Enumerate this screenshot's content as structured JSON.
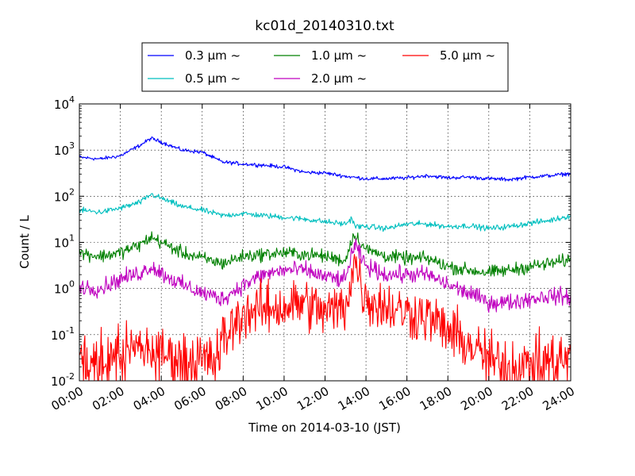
{
  "chart_data": {
    "type": "line",
    "title": "kc01d_20140310.txt",
    "xlabel": "Time on 2014-03-10 (JST)",
    "ylabel": "Count / L",
    "x_ticks": [
      "00:00",
      "02:00",
      "04:00",
      "06:00",
      "08:00",
      "10:00",
      "12:00",
      "14:00",
      "16:00",
      "18:00",
      "20:00",
      "22:00",
      "24:00"
    ],
    "y_ticks": [
      {
        "base": "10",
        "exp": "-2"
      },
      {
        "base": "10",
        "exp": "-1"
      },
      {
        "base": "10",
        "exp": "0"
      },
      {
        "base": "10",
        "exp": "1"
      },
      {
        "base": "10",
        "exp": "2"
      },
      {
        "base": "10",
        "exp": "3"
      },
      {
        "base": "10",
        "exp": "4"
      }
    ],
    "x_range_hours": [
      0,
      24
    ],
    "y_scale": "log",
    "ylim": [
      0.01,
      10000
    ],
    "grid": true,
    "legend_position": "top-center",
    "series": [
      {
        "name": "0.3 μm ~",
        "color": "#0000ff",
        "noise": 0.02,
        "floor": 0,
        "points": [
          [
            0,
            700
          ],
          [
            1,
            640
          ],
          [
            2,
            750
          ],
          [
            3,
            1300
          ],
          [
            3.5,
            1800
          ],
          [
            4,
            1500
          ],
          [
            5,
            1000
          ],
          [
            6,
            900
          ],
          [
            6.5,
            700
          ],
          [
            7,
            550
          ],
          [
            8,
            500
          ],
          [
            9,
            470
          ],
          [
            10,
            430
          ],
          [
            11,
            330
          ],
          [
            12,
            320
          ],
          [
            13,
            270
          ],
          [
            14,
            240
          ],
          [
            15,
            240
          ],
          [
            16,
            250
          ],
          [
            17,
            280
          ],
          [
            18,
            250
          ],
          [
            19,
            260
          ],
          [
            20,
            240
          ],
          [
            21,
            230
          ],
          [
            22,
            260
          ],
          [
            23,
            280
          ],
          [
            24,
            310
          ]
        ]
      },
      {
        "name": "0.5 μm ~",
        "color": "#00bfbf",
        "noise": 0.03,
        "floor": 0,
        "points": [
          [
            0,
            50
          ],
          [
            1,
            45
          ],
          [
            2,
            55
          ],
          [
            3,
            75
          ],
          [
            3.5,
            110
          ],
          [
            4,
            90
          ],
          [
            5,
            60
          ],
          [
            6,
            50
          ],
          [
            7,
            38
          ],
          [
            8,
            42
          ],
          [
            9,
            38
          ],
          [
            10,
            35
          ],
          [
            11,
            32
          ],
          [
            12,
            28
          ],
          [
            13,
            25
          ],
          [
            13.3,
            33
          ],
          [
            13.5,
            22
          ],
          [
            14,
            22
          ],
          [
            15,
            20
          ],
          [
            16,
            25
          ],
          [
            17,
            25
          ],
          [
            18,
            22
          ],
          [
            19,
            23
          ],
          [
            20,
            20
          ],
          [
            21,
            22
          ],
          [
            22,
            26
          ],
          [
            23,
            30
          ],
          [
            24,
            38
          ]
        ]
      },
      {
        "name": "1.0 μm ~",
        "color": "#008000",
        "noise": 0.07,
        "floor": 0,
        "points": [
          [
            0,
            6
          ],
          [
            1,
            5
          ],
          [
            2,
            6
          ],
          [
            3,
            9
          ],
          [
            3.5,
            13
          ],
          [
            4,
            10
          ],
          [
            5,
            6
          ],
          [
            6,
            4.5
          ],
          [
            7,
            3.5
          ],
          [
            8,
            5
          ],
          [
            9,
            5.5
          ],
          [
            10,
            6
          ],
          [
            11,
            5.5
          ],
          [
            12,
            5
          ],
          [
            13,
            4
          ],
          [
            13.3,
            12
          ],
          [
            13.5,
            14
          ],
          [
            14,
            7
          ],
          [
            15,
            5
          ],
          [
            16,
            4.5
          ],
          [
            17,
            4.5
          ],
          [
            18,
            3
          ],
          [
            19,
            2.5
          ],
          [
            20,
            2.2
          ],
          [
            21,
            2.5
          ],
          [
            22,
            3
          ],
          [
            23,
            3.5
          ],
          [
            24,
            4.2
          ]
        ]
      },
      {
        "name": "2.0 μm ~",
        "color": "#bf00bf",
        "noise": 0.09,
        "floor": 0,
        "points": [
          [
            0,
            1.1
          ],
          [
            1,
            1.0
          ],
          [
            2,
            1.6
          ],
          [
            3,
            2.2
          ],
          [
            3.5,
            3.0
          ],
          [
            4,
            2.2
          ],
          [
            5,
            1.2
          ],
          [
            6,
            0.8
          ],
          [
            7,
            0.6
          ],
          [
            8,
            1.2
          ],
          [
            9,
            2.0
          ],
          [
            10,
            2.5
          ],
          [
            11,
            2.5
          ],
          [
            12,
            1.8
          ],
          [
            13,
            1.5
          ],
          [
            13.3,
            6
          ],
          [
            13.5,
            8
          ],
          [
            14,
            3
          ],
          [
            15,
            2
          ],
          [
            16,
            2
          ],
          [
            17,
            2
          ],
          [
            18,
            1.2
          ],
          [
            19,
            0.8
          ],
          [
            20,
            0.5
          ],
          [
            21,
            0.5
          ],
          [
            22,
            0.6
          ],
          [
            23,
            0.7
          ],
          [
            24,
            0.65
          ]
        ]
      },
      {
        "name": "5.0 μm ~",
        "color": "#ff0000",
        "noise": 0.28,
        "floor": 0.01,
        "points": [
          [
            0,
            0.03
          ],
          [
            1,
            0.025
          ],
          [
            2,
            0.04
          ],
          [
            3,
            0.05
          ],
          [
            4,
            0.04
          ],
          [
            5,
            0.03
          ],
          [
            6,
            0.03
          ],
          [
            6.7,
            0.03
          ],
          [
            7,
            0.08
          ],
          [
            7.5,
            0.15
          ],
          [
            8,
            0.3
          ],
          [
            9,
            0.35
          ],
          [
            10,
            0.4
          ],
          [
            11,
            0.5
          ],
          [
            12,
            0.3
          ],
          [
            13,
            0.4
          ],
          [
            13.3,
            2
          ],
          [
            13.5,
            4
          ],
          [
            13.8,
            1
          ],
          [
            14,
            0.6
          ],
          [
            15,
            0.4
          ],
          [
            16,
            0.3
          ],
          [
            17,
            0.25
          ],
          [
            18,
            0.12
          ],
          [
            19,
            0.06
          ],
          [
            20,
            0.03
          ],
          [
            21,
            0.02
          ],
          [
            22,
            0.025
          ],
          [
            23,
            0.03
          ],
          [
            24,
            0.03
          ]
        ]
      }
    ]
  }
}
